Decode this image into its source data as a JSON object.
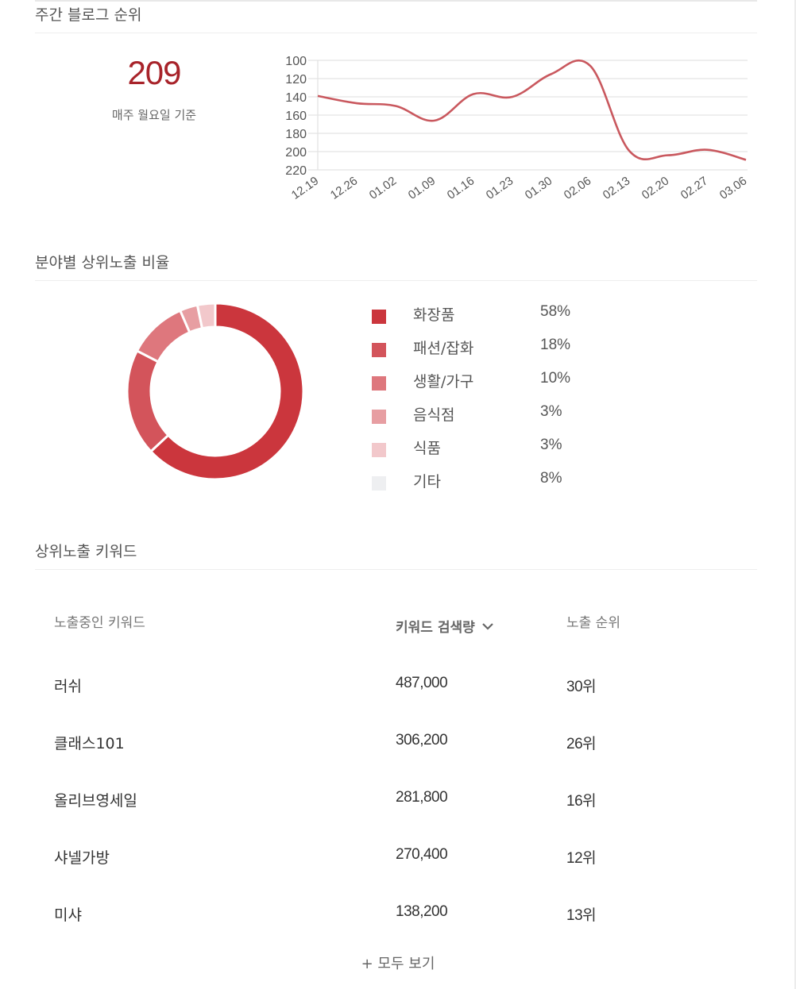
{
  "weekly_rank": {
    "title": "주간 블로그 순위",
    "current_rank": "209",
    "note": "매주 월요일 기준"
  },
  "category_ratio": {
    "title": "분야별 상위노출 비율",
    "items": [
      {
        "label": "화장품",
        "pct": "58%",
        "value": 58,
        "color": "#cb363d"
      },
      {
        "label": "패션/잡화",
        "pct": "18%",
        "value": 18,
        "color": "#d3545b"
      },
      {
        "label": "생활/가구",
        "pct": "10%",
        "value": 10,
        "color": "#de777d"
      },
      {
        "label": "음식점",
        "pct": "3%",
        "value": 3,
        "color": "#e79ea2"
      },
      {
        "label": "식품",
        "pct": "3%",
        "value": 3,
        "color": "#f2c8cb"
      },
      {
        "label": "기타",
        "pct": "8%",
        "value": 8,
        "color": "#eeeff1"
      }
    ]
  },
  "keywords": {
    "title": "상위노출 키워드",
    "columns": {
      "keyword": "노출중인 키워드",
      "volume": "키워드 검색량",
      "rank": "노출 순위"
    },
    "sort_icon": "chevron-down-icon",
    "rows": [
      {
        "keyword": "러쉬",
        "volume": "487,000",
        "rank": "30위"
      },
      {
        "keyword": "클래스101",
        "volume": "306,200",
        "rank": "26위"
      },
      {
        "keyword": "올리브영세일",
        "volume": "281,800",
        "rank": "16위"
      },
      {
        "keyword": "샤넬가방",
        "volume": "270,400",
        "rank": "12위"
      },
      {
        "keyword": "미샤",
        "volume": "138,200",
        "rank": "13위"
      }
    ],
    "more_label": "+ 모두 보기"
  },
  "colors": {
    "accent": "#a8232a",
    "line": "#c9585e"
  },
  "chart_data": [
    {
      "type": "line",
      "title": "주간 블로그 순위",
      "xlabel": "",
      "ylabel": "",
      "x": [
        "12.19",
        "12.26",
        "01.02",
        "01.09",
        "01.16",
        "01.23",
        "01.30",
        "02.06",
        "02.13",
        "02.20",
        "02.27",
        "03.06"
      ],
      "values": [
        139,
        147,
        150,
        166,
        137,
        140,
        115,
        106,
        199,
        204,
        198,
        209
      ],
      "yticks": [
        100,
        120,
        140,
        160,
        180,
        200,
        220
      ],
      "ylim": [
        100,
        220
      ],
      "y_inverted": true,
      "grid": true,
      "legend": "none"
    },
    {
      "type": "pie",
      "title": "분야별 상위노출 비율",
      "categories": [
        "화장품",
        "패션/잡화",
        "생활/가구",
        "음식점",
        "식품",
        "기타"
      ],
      "values": [
        58,
        18,
        10,
        3,
        3,
        8
      ],
      "donut": true,
      "legend_position": "right"
    }
  ]
}
